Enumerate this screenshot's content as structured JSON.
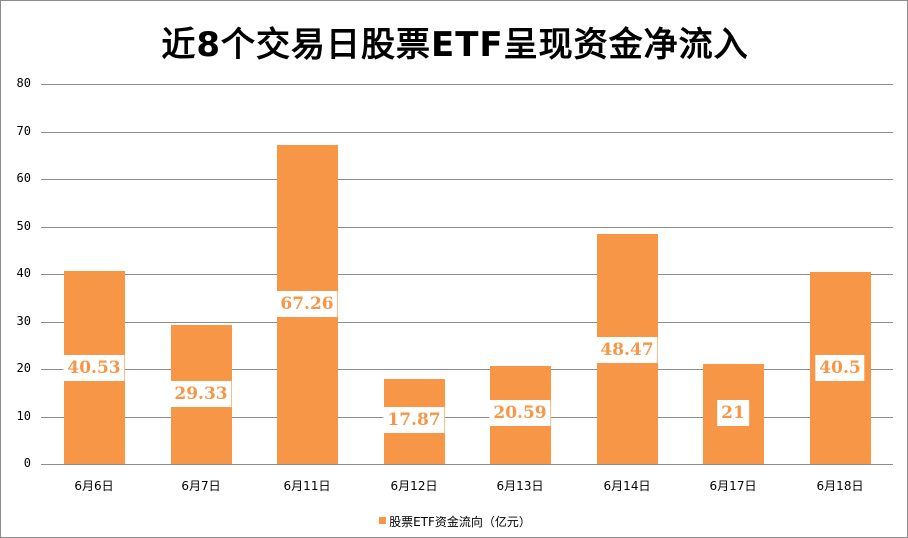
{
  "chart_data": {
    "type": "bar",
    "title": "近8个交易日股票ETF呈现资金净流入",
    "categories": [
      "6月6日",
      "6月7日",
      "6月11日",
      "6月12日",
      "6月13日",
      "6月14日",
      "6月17日",
      "6月18日"
    ],
    "series": [
      {
        "name": "股票ETF资金流向（亿元）",
        "values": [
          40.53,
          29.33,
          67.26,
          17.87,
          20.59,
          48.47,
          21,
          40.5
        ],
        "color": "#f79646"
      }
    ],
    "data_labels": [
      "40.53",
      "29.33",
      "67.26",
      "17.87",
      "20.59",
      "48.47",
      "21",
      "40.5"
    ],
    "xlabel": "",
    "ylabel": "",
    "ylim": [
      0,
      80
    ],
    "yticks": [
      "0",
      "10",
      "20",
      "30",
      "40",
      "50",
      "60",
      "70",
      "80"
    ],
    "grid": true,
    "legend_position": "bottom"
  },
  "legend": {
    "label": "股票ETF资金流向（亿元）"
  }
}
